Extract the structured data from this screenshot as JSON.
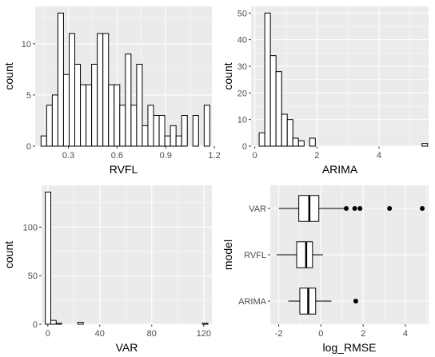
{
  "chart_data": [
    {
      "type": "bar",
      "subtype": "histogram",
      "xlabel": "RVFL",
      "ylabel": "count",
      "xlim": [
        0.095,
        1.185
      ],
      "ylim": [
        0,
        13.65
      ],
      "xticks": [
        0.3,
        0.6,
        0.9,
        1.2
      ],
      "xtick_labels": [
        "0.3",
        "0.6",
        "0.9",
        "1.2"
      ],
      "yticks": [
        0,
        5,
        10
      ],
      "ytick_labels": [
        "0",
        "5",
        "10"
      ],
      "bin_start": 0.131,
      "bin_width": 0.0347,
      "counts": [
        1,
        4,
        5,
        13,
        7,
        11,
        8,
        6,
        6,
        8,
        11,
        11,
        6,
        6,
        4,
        9,
        4,
        8,
        2,
        4,
        3,
        3,
        1,
        2,
        1,
        3,
        0,
        3,
        0,
        4
      ]
    },
    {
      "type": "bar",
      "subtype": "histogram",
      "xlabel": "ARIMA",
      "ylabel": "count",
      "xlim": [
        -0.12,
        5.6
      ],
      "ylim": [
        0,
        52.5
      ],
      "xticks": [
        0,
        2,
        4
      ],
      "xtick_labels": [
        "0",
        "2",
        "4"
      ],
      "yticks": [
        0,
        10,
        20,
        30,
        40,
        50
      ],
      "ytick_labels": [
        "0",
        "10",
        "20",
        "30",
        "40",
        "50"
      ],
      "bin_start": 0.14,
      "bin_width": 0.181,
      "counts": [
        5,
        50,
        34,
        28,
        12,
        10,
        3,
        2,
        0,
        3,
        0,
        0,
        0,
        0,
        0,
        0,
        0,
        0,
        0,
        0,
        0,
        0,
        0,
        0,
        0,
        0,
        0,
        0,
        0,
        1
      ]
    },
    {
      "type": "bar",
      "subtype": "histogram",
      "xlabel": "VAR",
      "ylabel": "count",
      "xlim": [
        -4.8,
        126.3
      ],
      "ylim": [
        0,
        143
      ],
      "xticks": [
        0,
        40,
        80,
        120
      ],
      "xtick_labels": [
        "0",
        "40",
        "80",
        "120"
      ],
      "yticks": [
        0,
        50,
        100
      ],
      "ytick_labels": [
        "0",
        "50",
        "100"
      ],
      "bin_start": -1.9,
      "bin_width": 4.17,
      "counts": [
        136,
        4,
        1,
        0,
        0,
        0,
        2,
        0,
        0,
        0,
        0,
        0,
        0,
        0,
        0,
        0,
        0,
        0,
        0,
        0,
        0,
        0,
        0,
        0,
        0,
        0,
        0,
        0,
        0,
        1
      ]
    },
    {
      "type": "boxplot",
      "orientation": "horizontal",
      "xlabel": "log_RMSE",
      "ylabel": "model",
      "xlim": [
        -2.4,
        5.1
      ],
      "xticks": [
        -2,
        0,
        2,
        4
      ],
      "xtick_labels": [
        "-2",
        "0",
        "2",
        "4"
      ],
      "categories": [
        "VAR",
        "RVFL",
        "ARIMA"
      ],
      "boxes": [
        {
          "name": "VAR",
          "whisker_low": -2.0,
          "q1": -1.05,
          "median": -0.55,
          "q3": -0.1,
          "whisker_high": 1.2,
          "outliers": [
            1.2,
            1.6,
            1.85,
            3.25,
            4.8
          ]
        },
        {
          "name": "RVFL",
          "whisker_low": -2.1,
          "q1": -1.15,
          "median": -0.7,
          "q3": -0.4,
          "whisker_high": 0.1,
          "outliers": []
        },
        {
          "name": "ARIMA",
          "whisker_low": -1.55,
          "q1": -1.0,
          "median": -0.6,
          "q3": -0.25,
          "whisker_high": 0.5,
          "outliers": [
            1.65
          ]
        }
      ]
    }
  ]
}
